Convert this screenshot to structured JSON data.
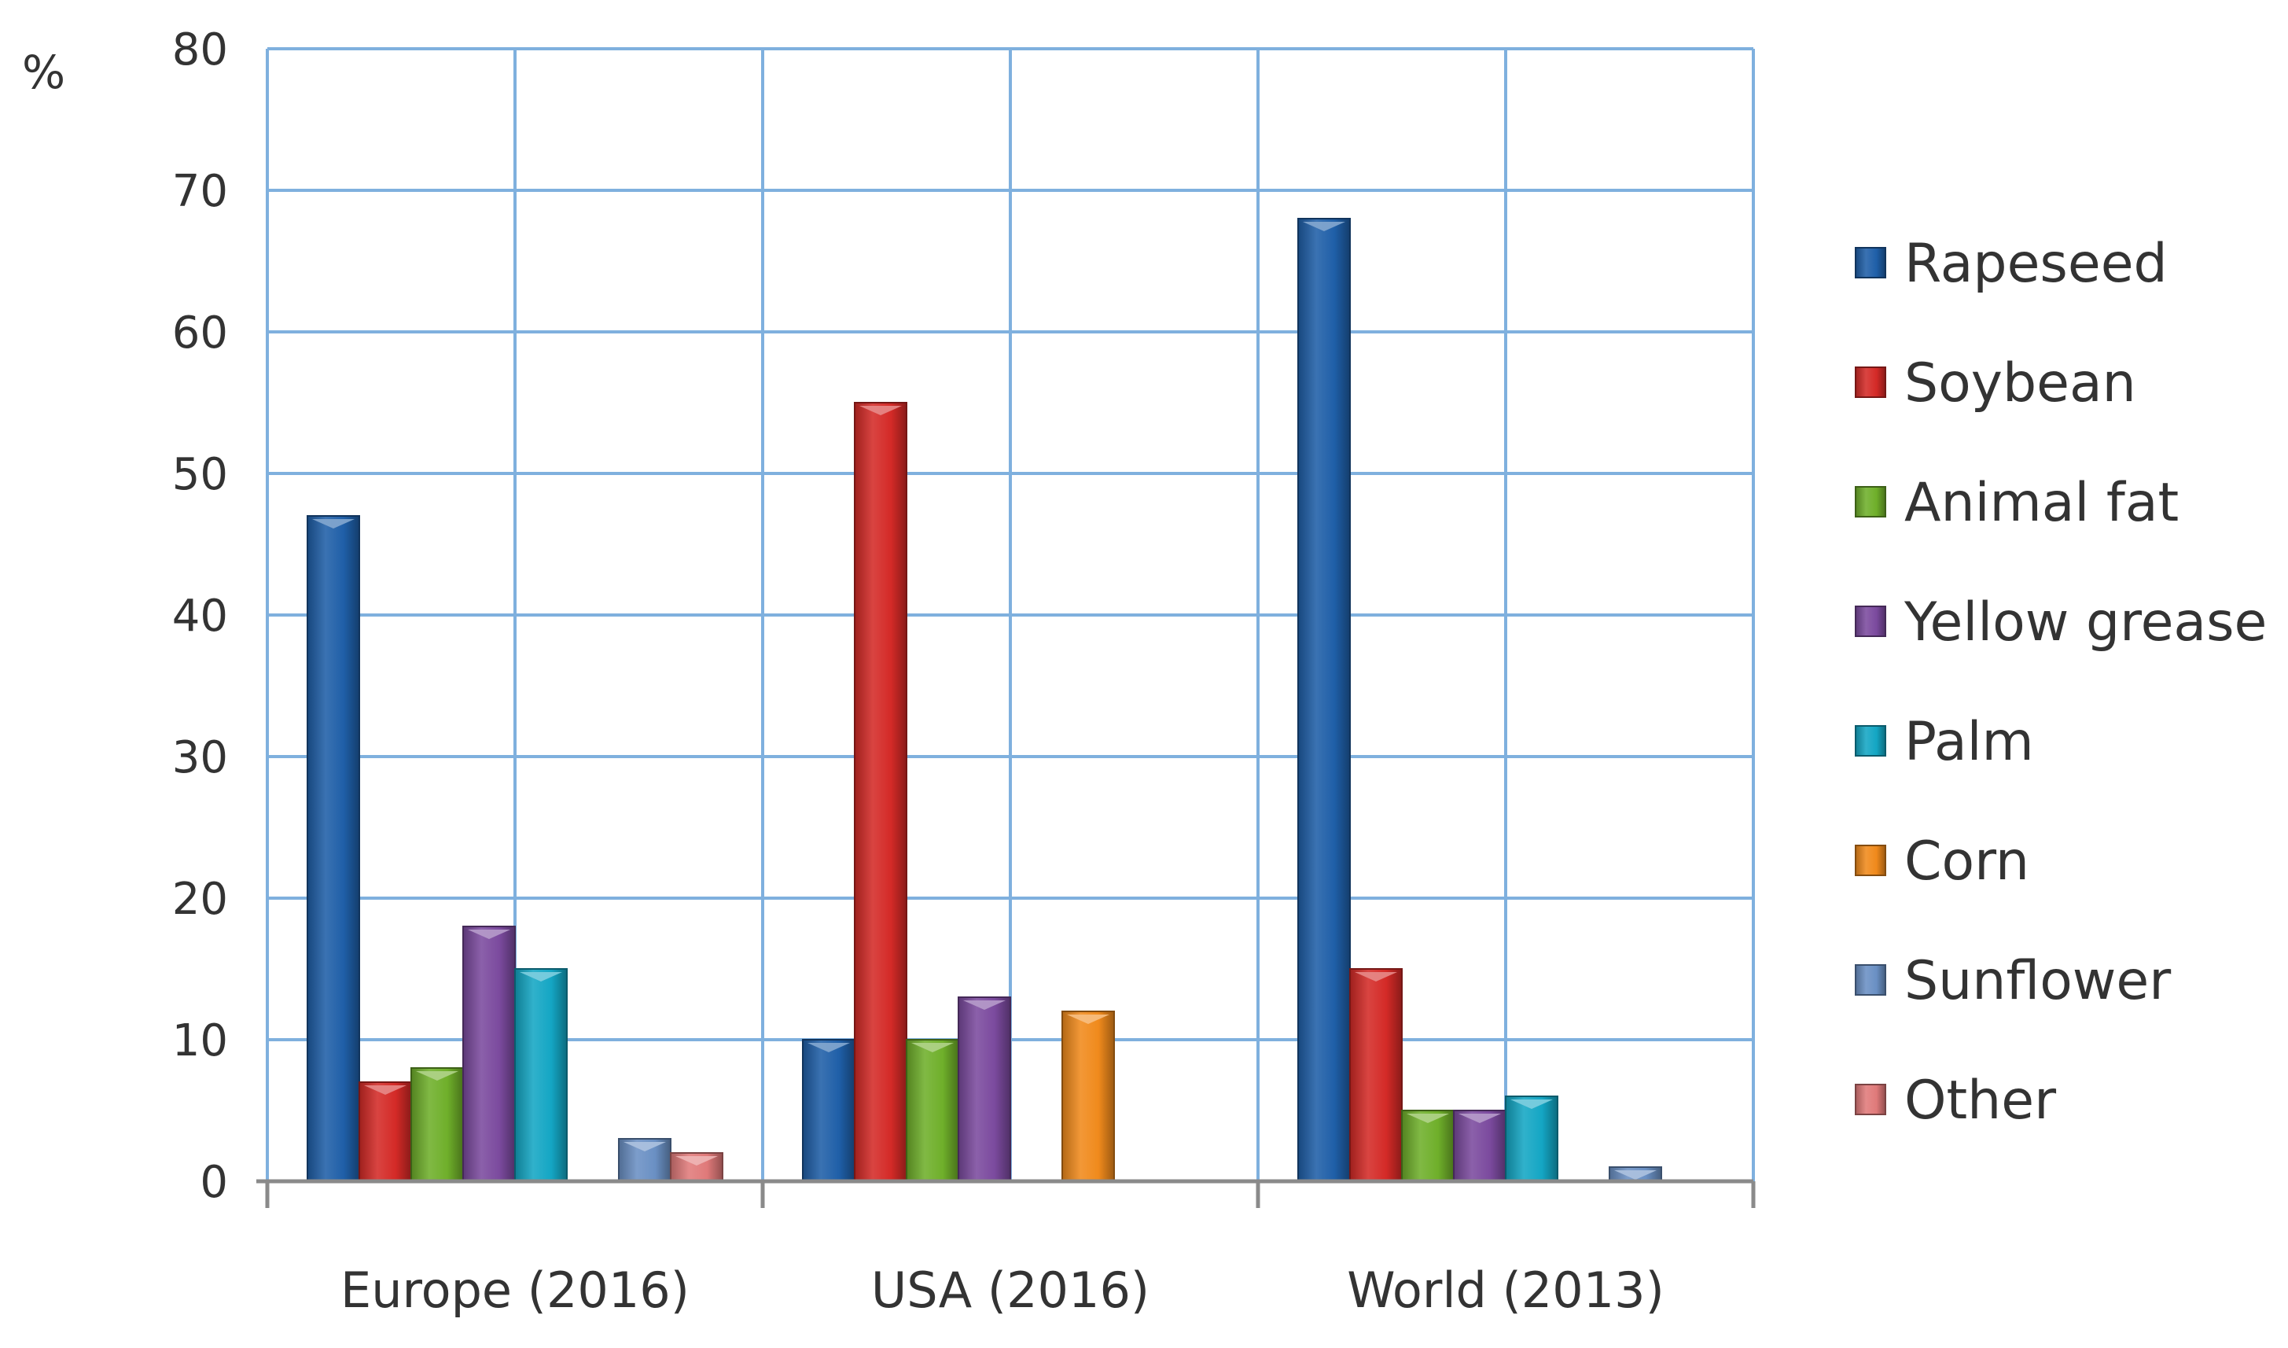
{
  "chart_data": {
    "type": "bar",
    "title": "",
    "xlabel": "",
    "ylabel": "%",
    "ylim": [
      0,
      80
    ],
    "yticks": [
      0,
      10,
      20,
      30,
      40,
      50,
      60,
      70,
      80
    ],
    "grid": true,
    "legend_position": "right",
    "categories": [
      "Europe (2016)",
      "USA (2016)",
      "World (2013)"
    ],
    "series": [
      {
        "name": "Rapeseed",
        "color": "#1F5FA8",
        "values": [
          47,
          10,
          68
        ]
      },
      {
        "name": "Soybean",
        "color": "#D42A27",
        "values": [
          7,
          55,
          15
        ]
      },
      {
        "name": "Animal fat",
        "color": "#6FAF2A",
        "values": [
          8,
          10,
          5
        ]
      },
      {
        "name": "Yellow grease",
        "color": "#7B4A9E",
        "values": [
          18,
          13,
          5
        ]
      },
      {
        "name": "Palm",
        "color": "#14A6C4",
        "values": [
          15,
          0,
          6
        ]
      },
      {
        "name": "Corn",
        "color": "#F08A1C",
        "values": [
          0,
          12,
          0
        ]
      },
      {
        "name": "Sunflower",
        "color": "#6A90C4",
        "values": [
          3,
          0,
          1
        ]
      },
      {
        "name": "Other",
        "color": "#E07A7A",
        "values": [
          2,
          0,
          0
        ]
      }
    ]
  }
}
